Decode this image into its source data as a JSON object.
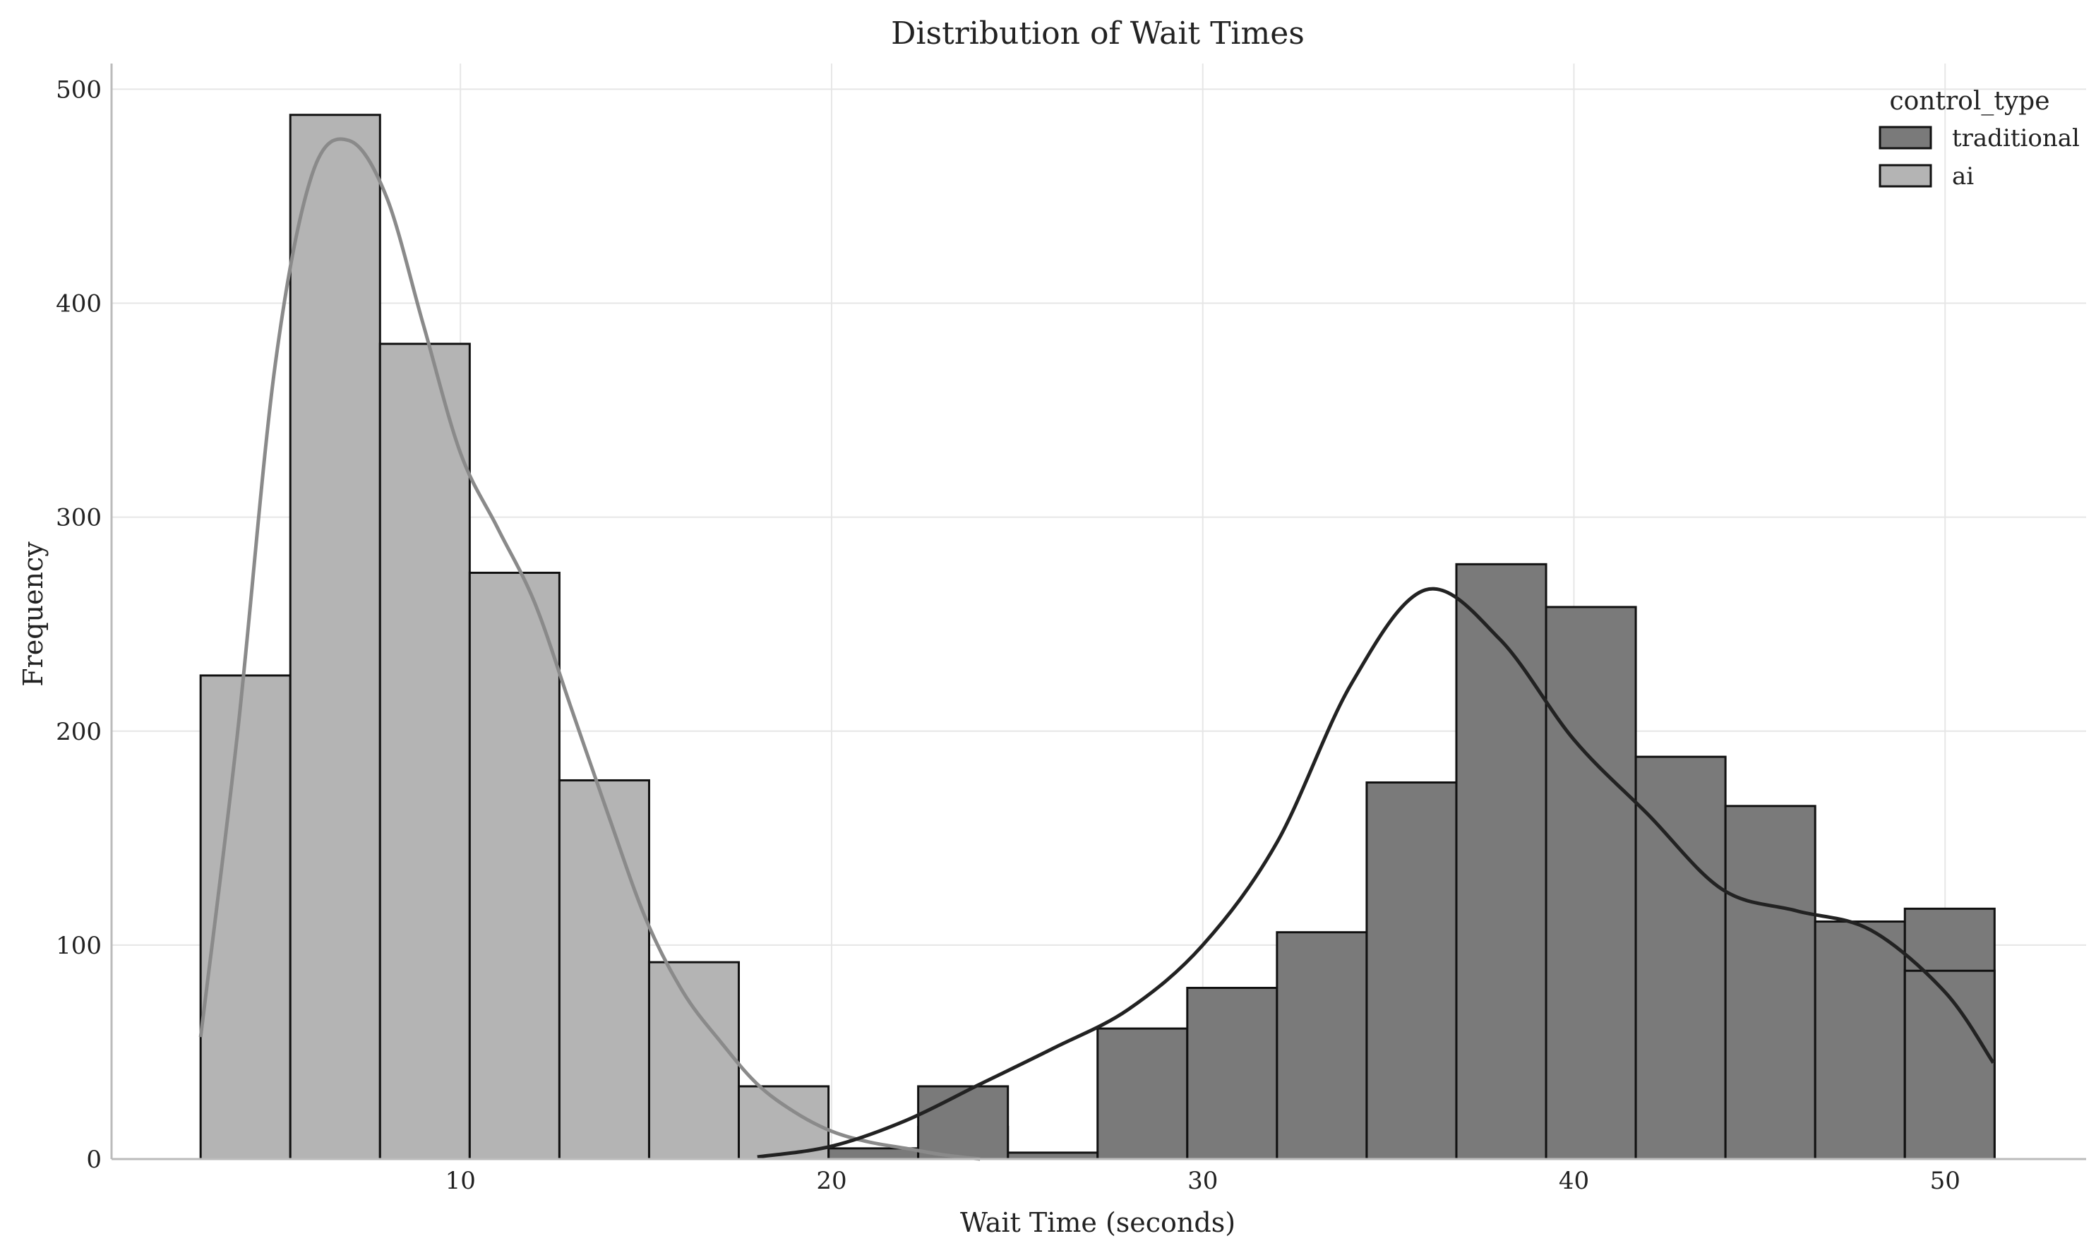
{
  "chart_data": {
    "type": "bar",
    "title": "Distribution of Wait Times",
    "xlabel": "Wait Time (seconds)",
    "ylabel": "Frequency",
    "xlim": [
      0.6,
      53.8
    ],
    "ylim": [
      0,
      512
    ],
    "xticks": [
      10,
      20,
      30,
      40,
      50
    ],
    "yticks": [
      0,
      100,
      200,
      300,
      400,
      500
    ],
    "grid": true,
    "legend": {
      "title": "control_type",
      "placement": "top-right"
    },
    "bin_edges": [
      3.0,
      5.4167,
      7.8333,
      10.25,
      12.6667,
      15.0833,
      17.5,
      19.9167,
      22.3333,
      24.75,
      27.1667,
      29.5833,
      32.0,
      34.4167,
      36.8333,
      39.25,
      41.6667,
      44.0833,
      46.5,
      48.9167,
      51.3333
    ],
    "series": [
      {
        "name": "traditional",
        "color": "#7a7a7a",
        "values": [
          0,
          0,
          0,
          0,
          0,
          0,
          3,
          5,
          15,
          3,
          61,
          80,
          106,
          176,
          278,
          258,
          188,
          165,
          111,
          117
        ],
        "overlay_values": [
          0,
          0,
          0,
          0,
          0,
          0,
          0,
          0,
          34,
          0,
          0,
          0,
          0,
          0,
          0,
          0,
          0,
          0,
          0,
          88
        ],
        "kde_x": [
          18,
          20,
          22,
          24,
          26,
          28,
          30,
          32,
          34,
          36,
          38,
          40,
          42,
          44,
          46,
          48,
          50,
          51.3
        ],
        "kde_y": [
          1,
          6,
          18,
          35,
          52,
          70,
          100,
          148,
          222,
          266,
          243,
          196,
          161,
          126,
          116,
          107,
          78,
          45
        ]
      },
      {
        "name": "ai",
        "color": "#b4b4b4",
        "values": [
          226,
          488,
          381,
          274,
          177,
          92,
          34,
          0,
          0,
          0,
          0,
          0,
          0,
          0,
          0,
          0,
          0,
          0,
          0,
          0
        ],
        "kde_x": [
          3.0,
          4.0,
          5.0,
          6.0,
          7.0,
          8.0,
          9.0,
          10.0,
          11.0,
          12.0,
          13.0,
          14.0,
          15.0,
          16.0,
          17.0,
          18.0,
          19.0,
          20.0,
          21.0,
          22.0,
          23.0,
          24.0
        ],
        "kde_y": [
          57,
          200,
          370,
          460,
          476,
          450,
          390,
          330,
          295,
          260,
          210,
          160,
          112,
          78,
          55,
          35,
          22,
          13,
          8,
          5,
          2,
          0
        ]
      }
    ]
  }
}
